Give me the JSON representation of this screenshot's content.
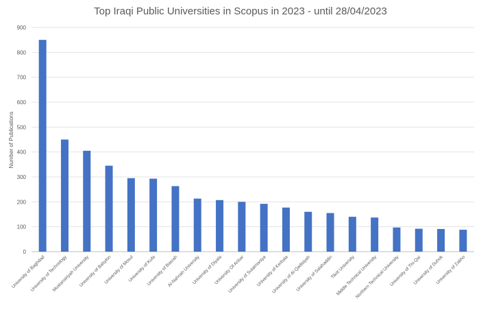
{
  "chart_data": {
    "type": "bar",
    "title": "Top Iraqi Public Universities in Scopus in 2023 - until 28/04/2023",
    "xlabel": "",
    "ylabel": "Number of Publications",
    "ylim": [
      0,
      900
    ],
    "yticks": [
      0,
      100,
      200,
      300,
      400,
      500,
      600,
      700,
      800,
      900
    ],
    "grid": true,
    "legend": "none",
    "bar_color": "#4472C4",
    "categories": [
      "University of Baghdad",
      "University of Technology",
      "Mustansiriyah University",
      "University of Babylon",
      "University of Mosul",
      "University of Kufa",
      "University of Basrah",
      "Al-Nahrain University",
      "University of Diyala",
      "University Of Anbar",
      "University of Sulaimaniya",
      "University of Kerbala",
      "University of Al-Qadisiyah",
      "University of Salahaddin",
      "Tikrit University",
      "Middle Technical University",
      "Northern Technical University",
      "University of Thi-Qar",
      "University of Duhok",
      "University of Zakho"
    ],
    "values": [
      850,
      450,
      405,
      345,
      295,
      293,
      263,
      213,
      207,
      200,
      192,
      177,
      160,
      155,
      140,
      137,
      97,
      92,
      91,
      88
    ]
  }
}
